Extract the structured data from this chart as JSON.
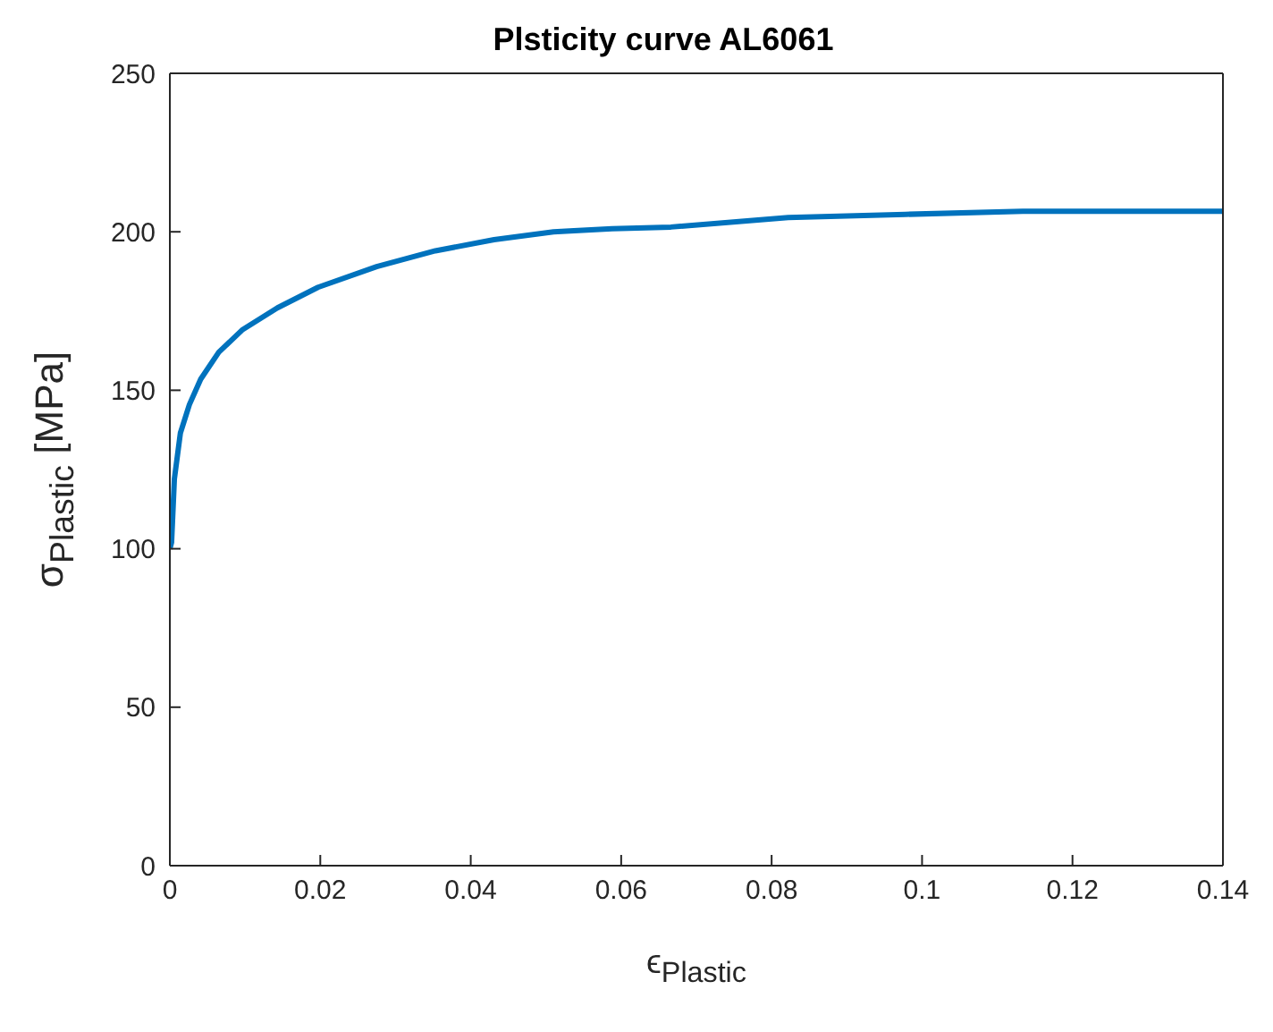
{
  "chart_data": {
    "type": "line",
    "title": "Plsticity curve AL6061",
    "xlabel": "ϵ$_{Plastic}$",
    "ylabel": "σ$_{Plastic}$ [MPa]",
    "x": [
      0,
      0.00023,
      0.0006,
      0.0014,
      0.0026,
      0.0041,
      0.0065,
      0.0096,
      0.0143,
      0.0197,
      0.0275,
      0.0353,
      0.0431,
      0.051,
      0.0588,
      0.0666,
      0.0822,
      0.0978,
      0.1134,
      0.129,
      0.14
    ],
    "series": [
      {
        "color": "#0072bd",
        "values": [
          100,
          102,
          122,
          136.5,
          145.5,
          153.5,
          162,
          169,
          176,
          182.5,
          189,
          194,
          197.5,
          200,
          201,
          201.5,
          204.5,
          205.5,
          206.5,
          206.5,
          206.5
        ]
      }
    ],
    "xlim": [
      0,
      0.14
    ],
    "xticks": [
      0,
      0.02,
      0.04,
      0.06,
      0.08,
      0.1,
      0.12,
      0.14
    ],
    "ylim": [
      0,
      250
    ],
    "yticks": [
      0,
      50,
      100,
      150,
      200,
      250
    ],
    "line_style": "solid",
    "marker": "none"
  }
}
